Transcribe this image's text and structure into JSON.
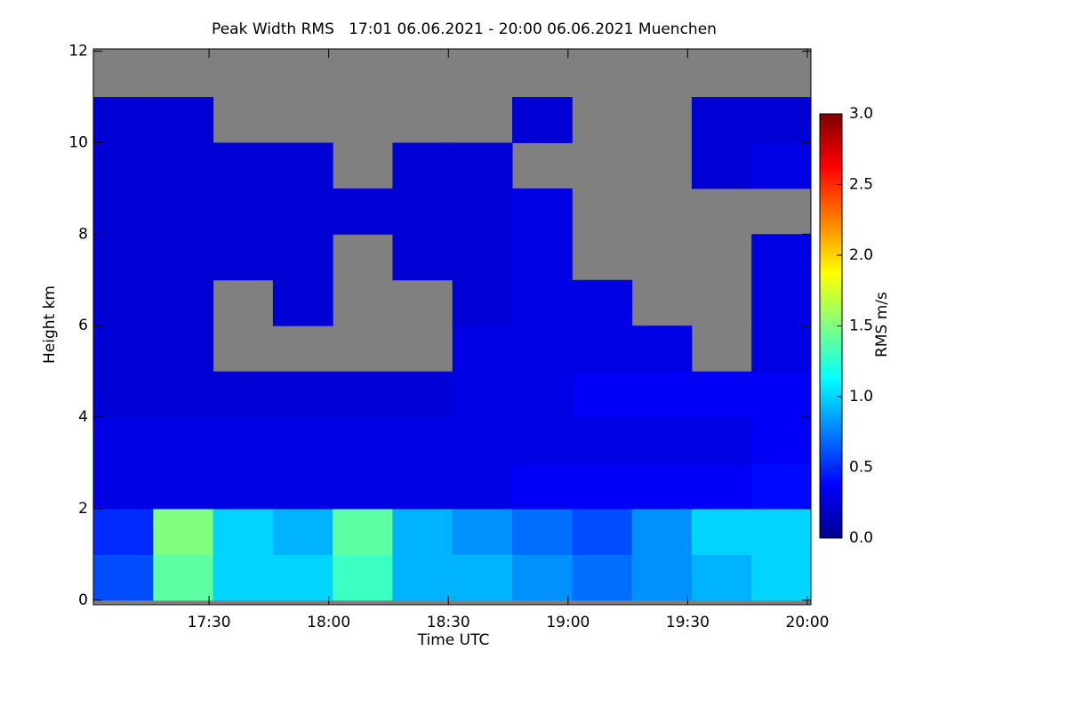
{
  "chart_data": {
    "type": "heatmap",
    "title": "Peak Width RMS   17:01 06.06.2021 - 20:00 06.06.2021 Muenchen",
    "x_label": "Time UTC",
    "y_label": "Height km",
    "colorbar_label": "RMS m/s",
    "x": [
      "17:01",
      "17:16",
      "17:31",
      "17:46",
      "18:01",
      "18:16",
      "18:31",
      "18:46",
      "19:01",
      "19:16",
      "19:31",
      "19:46"
    ],
    "y": [
      0,
      1,
      2,
      3,
      4,
      5,
      6,
      7,
      8,
      9,
      10,
      11
    ],
    "values": [
      [
        0.6,
        1.4,
        1.0,
        1.0,
        1.3,
        0.9,
        0.9,
        0.8,
        0.7,
        0.8,
        0.9,
        1.0
      ],
      [
        0.5,
        1.5,
        1.0,
        0.9,
        1.4,
        0.9,
        0.8,
        0.7,
        0.6,
        0.8,
        1.0,
        1.0
      ],
      [
        0.3,
        0.3,
        0.3,
        0.3,
        0.3,
        0.3,
        0.3,
        0.35,
        0.35,
        0.35,
        0.35,
        0.4
      ],
      [
        0.3,
        0.3,
        0.3,
        0.3,
        0.3,
        0.3,
        0.3,
        0.3,
        0.3,
        0.3,
        0.3,
        0.35
      ],
      [
        0.25,
        0.25,
        0.25,
        0.25,
        0.25,
        0.25,
        0.3,
        0.3,
        0.35,
        0.35,
        0.35,
        0.35
      ],
      [
        0.25,
        0.25,
        null,
        null,
        null,
        null,
        0.3,
        0.3,
        0.3,
        0.3,
        null,
        0.3
      ],
      [
        0.25,
        0.25,
        null,
        0.25,
        null,
        null,
        0.25,
        0.3,
        0.3,
        null,
        null,
        0.3
      ],
      [
        0.25,
        0.25,
        0.25,
        0.25,
        null,
        0.25,
        0.25,
        0.3,
        null,
        null,
        null,
        0.3
      ],
      [
        0.25,
        0.25,
        0.25,
        0.25,
        0.25,
        0.25,
        0.25,
        0.3,
        null,
        null,
        null,
        null
      ],
      [
        0.25,
        0.25,
        0.25,
        0.25,
        null,
        0.25,
        0.25,
        null,
        null,
        null,
        0.25,
        0.3
      ],
      [
        0.25,
        0.25,
        null,
        null,
        null,
        null,
        null,
        0.25,
        null,
        null,
        0.25,
        0.25
      ],
      [
        null,
        null,
        null,
        null,
        null,
        null,
        null,
        null,
        null,
        null,
        null,
        null
      ]
    ],
    "cell_minutes": 15,
    "cell_km": 1,
    "missing_color": "#808080",
    "colormap": "jet",
    "xlim": [
      "17:01",
      "20:00"
    ],
    "xticks": [
      "17:30",
      "18:00",
      "18:30",
      "19:00",
      "19:30",
      "20:00"
    ],
    "ylim": [
      -0.1,
      12.05
    ],
    "yticks": [
      0,
      2,
      4,
      6,
      8,
      10,
      12
    ],
    "clim": [
      0,
      3
    ],
    "cticks": [
      {
        "value": 0,
        "label": "0.0"
      },
      0.5,
      {
        "value": 1,
        "label": "1.0"
      },
      1.5,
      {
        "value": 2,
        "label": "2.0"
      },
      2.5,
      {
        "value": 3,
        "label": "3.0"
      }
    ]
  }
}
